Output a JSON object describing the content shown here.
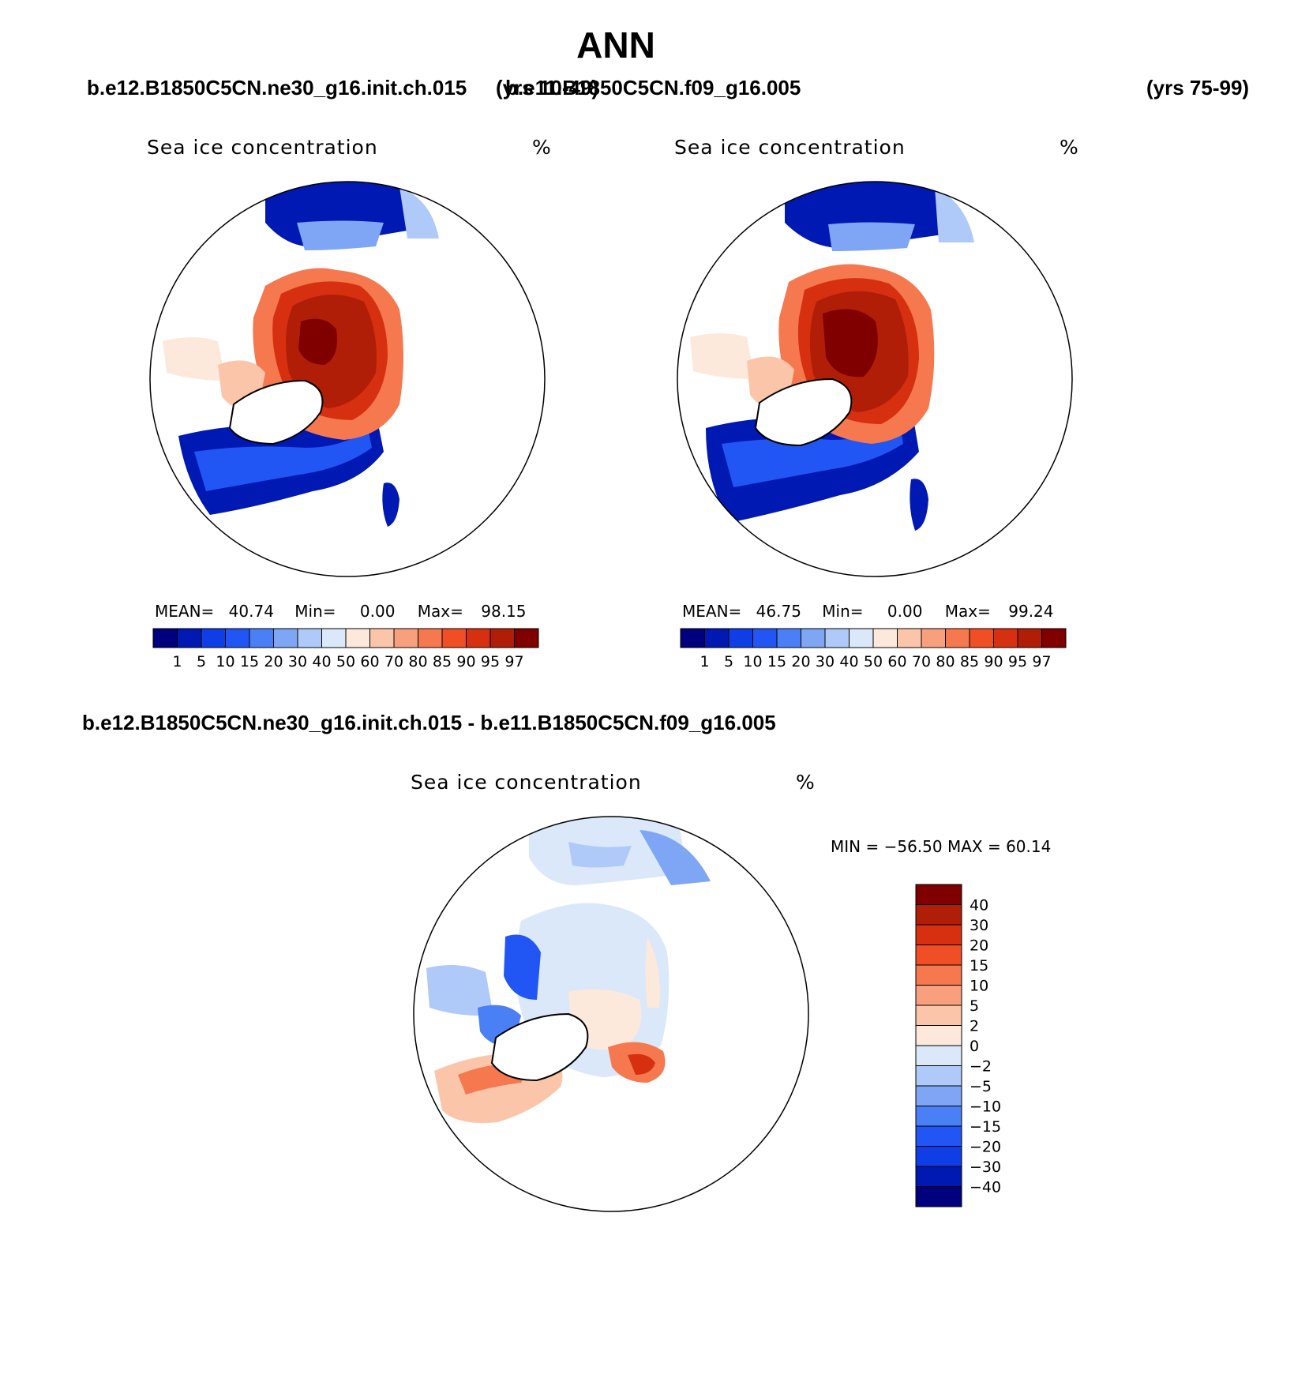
{
  "header": {
    "season": "ANN",
    "case_left": "b.e12.B1850C5CN.ne30_g16.init.ch.015",
    "years_left": "(yrs 10-49)",
    "case_right": "b.e11.B1850C5CN.f09_g16.005",
    "years_right": "(yrs 75-99)",
    "diff_title": "b.e12.B1850C5CN.ne30_g16.init.ch.015 - b.e11.B1850C5CN.f09_g16.005"
  },
  "panels": [
    {
      "title": "Sea ice concentration",
      "units": "%",
      "mean_label": "MEAN=",
      "mean": "40.74",
      "min_label": "Min=",
      "min": "0.00",
      "max_label": "Max=",
      "max": "98.15"
    },
    {
      "title": "Sea ice concentration",
      "units": "%",
      "mean_label": "MEAN=",
      "mean": "46.75",
      "min_label": "Min=",
      "min": "0.00",
      "max_label": "Max=",
      "max": "99.24"
    },
    {
      "title": "Sea ice concentration",
      "units": "%",
      "minmax_text": "MIN = −56.50 MAX =   60.14"
    }
  ],
  "colorbar_abs": {
    "levels": [
      "1",
      "5",
      "10",
      "15",
      "20",
      "30",
      "40",
      "50",
      "60",
      "70",
      "80",
      "85",
      "90",
      "95",
      "97"
    ],
    "colors": [
      "#00007f",
      "#0019b3",
      "#0f3ee6",
      "#2156f5",
      "#4a7ff5",
      "#7ea6f5",
      "#afc9f8",
      "#dae8fa",
      "#fde9dc",
      "#fbc5aa",
      "#f8a07e",
      "#f5784f",
      "#f04e25",
      "#d63010",
      "#b01e08",
      "#800000"
    ]
  },
  "colorbar_diff": {
    "levels": [
      "40",
      "30",
      "20",
      "15",
      "10",
      "5",
      "2",
      "0",
      "−2",
      "−5",
      "−10",
      "−15",
      "−20",
      "−30",
      "−40"
    ],
    "colors": [
      "#800000",
      "#b01e08",
      "#d63010",
      "#f04e25",
      "#f5784f",
      "#f8a07e",
      "#fbc5aa",
      "#fde9dc",
      "#dae8fa",
      "#afc9f8",
      "#7ea6f5",
      "#4a7ff5",
      "#2156f5",
      "#0f3ee6",
      "#0019b3",
      "#00007f"
    ]
  }
}
